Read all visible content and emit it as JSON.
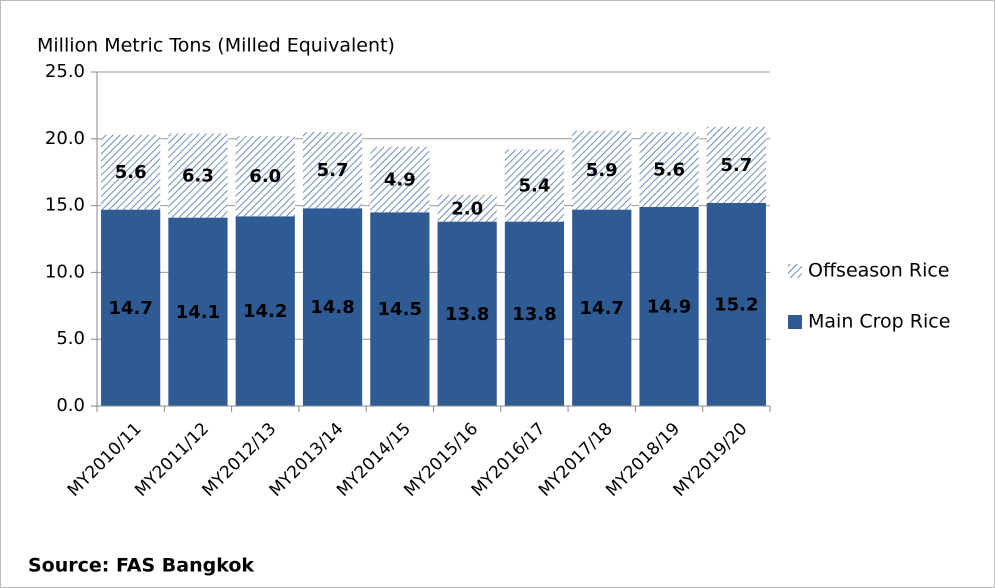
{
  "chart_data": {
    "type": "stacked_bar",
    "y_axis_label": "Million Metric Tons (Milled Equivalent)",
    "source": "Source: FAS Bangkok",
    "categories": [
      "MY2010/11",
      "MY2011/12",
      "MY2012/13",
      "MY2013/14",
      "MY2014/15",
      "MY2015/16",
      "MY2016/17",
      "MY2017/18",
      "MY2018/19",
      "MY2019/20"
    ],
    "series": [
      {
        "name": "Main Crop Rice",
        "color": "#2f5b94",
        "pattern": "solid",
        "values": [
          14.7,
          14.1,
          14.2,
          14.8,
          14.5,
          13.8,
          13.8,
          14.7,
          14.9,
          15.2
        ],
        "value_labels": [
          "14.7",
          "14.1",
          "14.2",
          "14.8",
          "14.5",
          "13.8",
          "13.8",
          "14.7",
          "14.9",
          "15.2"
        ]
      },
      {
        "name": "Offseason Rice",
        "color": "#4a72a8",
        "pattern": "hatch",
        "values": [
          5.6,
          6.3,
          6.0,
          5.7,
          4.9,
          2.0,
          5.4,
          5.9,
          5.6,
          5.7
        ],
        "value_labels": [
          "5.6",
          "6.3",
          "6.0",
          "5.7",
          "4.9",
          "2.0",
          "5.4",
          "5.9",
          "5.6",
          "5.7"
        ]
      }
    ],
    "ylim": [
      0,
      25
    ],
    "yticks": [
      {
        "value": 0,
        "label": "0.0"
      },
      {
        "value": 5,
        "label": "5.0"
      },
      {
        "value": 10,
        "label": "10.0"
      },
      {
        "value": 15,
        "label": "15.0"
      },
      {
        "value": 20,
        "label": "20.0"
      },
      {
        "value": 25,
        "label": "25.0"
      }
    ],
    "grid": true,
    "legend": "right"
  }
}
